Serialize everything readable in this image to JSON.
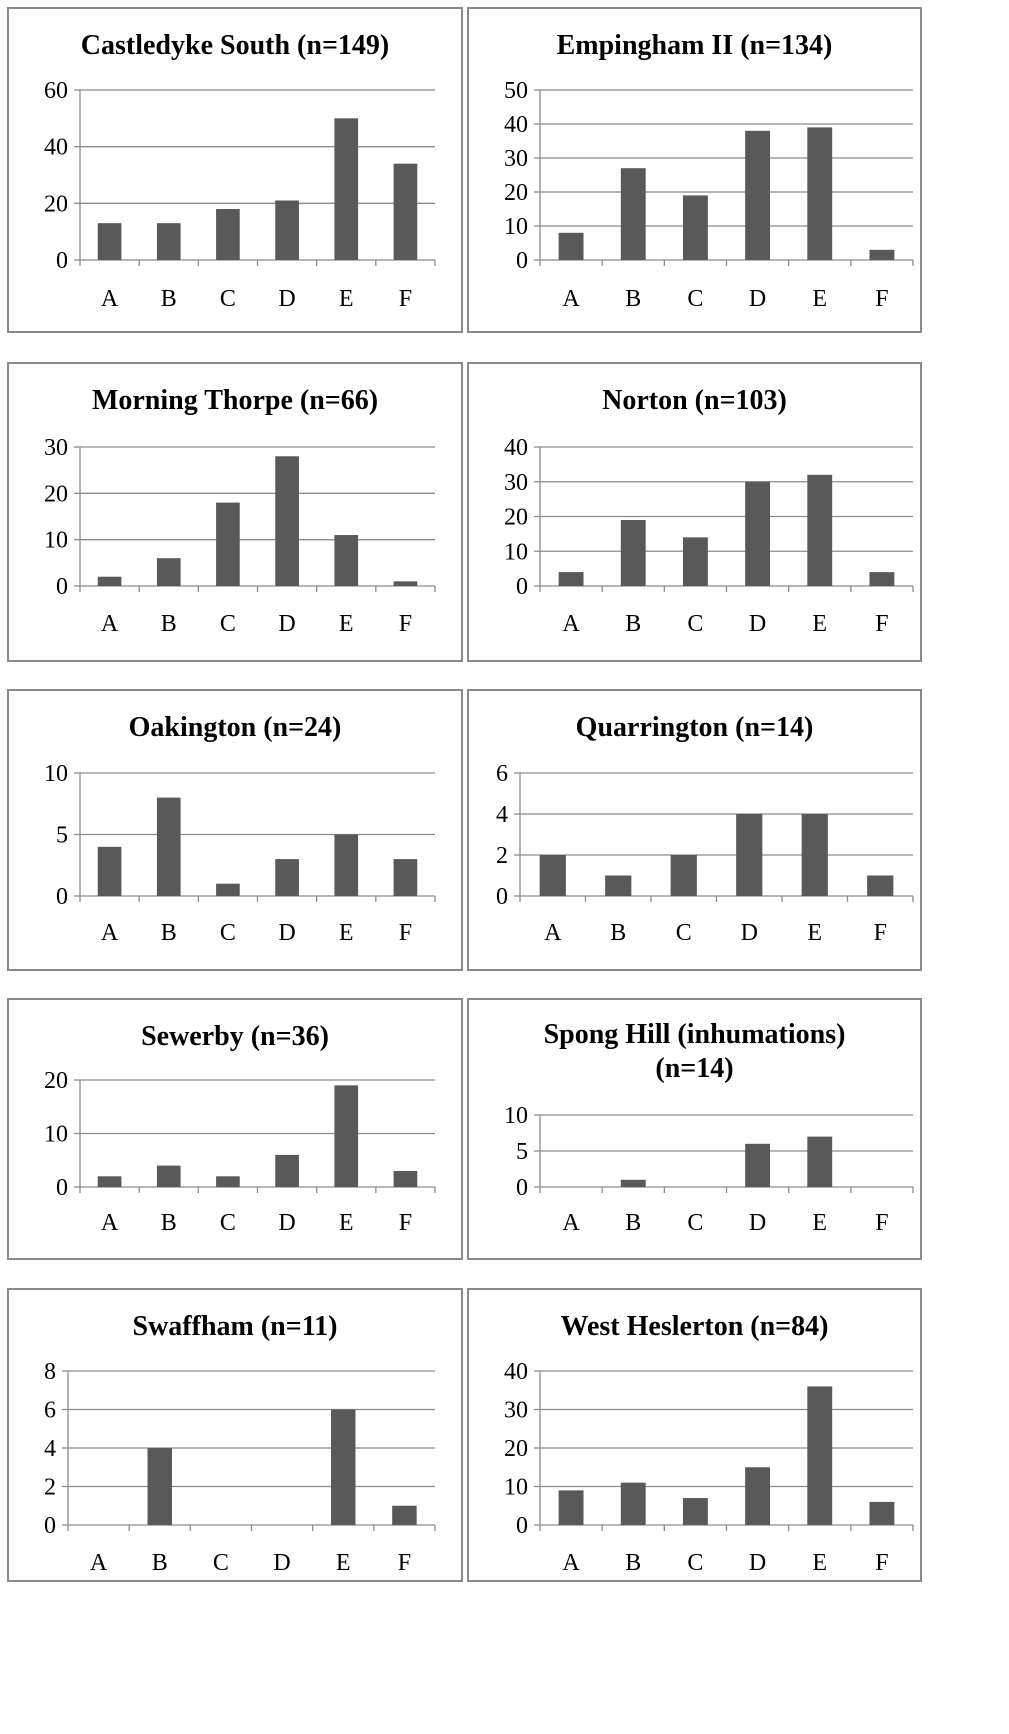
{
  "page": {
    "background": "#ffffff",
    "bar_color": "#595959",
    "grid_color": "#8c8c8c",
    "border_color": "#8a8a8a"
  },
  "chart_data": [
    {
      "type": "bar",
      "title": "Castledyke South (n=149)",
      "categories": [
        "A",
        "B",
        "C",
        "D",
        "E",
        "F"
      ],
      "values": [
        13,
        13,
        18,
        21,
        50,
        34
      ],
      "ylim": [
        0,
        60
      ],
      "yticks": [
        0,
        20,
        40,
        60
      ],
      "grid": true
    },
    {
      "type": "bar",
      "title": "Empingham II (n=134)",
      "categories": [
        "A",
        "B",
        "C",
        "D",
        "E",
        "F"
      ],
      "values": [
        8,
        27,
        19,
        38,
        39,
        3
      ],
      "ylim": [
        0,
        50
      ],
      "yticks": [
        0,
        10,
        20,
        30,
        40,
        50
      ],
      "grid": true
    },
    {
      "type": "bar",
      "title": "Morning Thorpe (n=66)",
      "categories": [
        "A",
        "B",
        "C",
        "D",
        "E",
        "F"
      ],
      "values": [
        2,
        6,
        18,
        28,
        11,
        1
      ],
      "ylim": [
        0,
        30
      ],
      "yticks": [
        0,
        10,
        20,
        30
      ],
      "grid": true
    },
    {
      "type": "bar",
      "title": "Norton (n=103)",
      "categories": [
        "A",
        "B",
        "C",
        "D",
        "E",
        "F"
      ],
      "values": [
        4,
        19,
        14,
        30,
        32,
        4
      ],
      "ylim": [
        0,
        40
      ],
      "yticks": [
        0,
        10,
        20,
        30,
        40
      ],
      "grid": true
    },
    {
      "type": "bar",
      "title": "Oakington (n=24)",
      "categories": [
        "A",
        "B",
        "C",
        "D",
        "E",
        "F"
      ],
      "values": [
        4,
        8,
        1,
        3,
        5,
        3
      ],
      "ylim": [
        0,
        10
      ],
      "yticks": [
        0,
        5,
        10
      ],
      "grid": true
    },
    {
      "type": "bar",
      "title": "Quarrington (n=14)",
      "categories": [
        "A",
        "B",
        "C",
        "D",
        "E",
        "F"
      ],
      "values": [
        2,
        1,
        2,
        4,
        4,
        1
      ],
      "ylim": [
        0,
        6
      ],
      "yticks": [
        0,
        2,
        4,
        6
      ],
      "grid": true
    },
    {
      "type": "bar",
      "title": "Sewerby (n=36)",
      "categories": [
        "A",
        "B",
        "C",
        "D",
        "E",
        "F"
      ],
      "values": [
        2,
        4,
        2,
        6,
        19,
        3
      ],
      "ylim": [
        0,
        20
      ],
      "yticks": [
        0,
        10,
        20
      ],
      "grid": true
    },
    {
      "type": "bar",
      "title": "Spong Hill (inhumations)\n(n=14)",
      "categories": [
        "A",
        "B",
        "C",
        "D",
        "E",
        "F"
      ],
      "values": [
        0,
        1,
        0,
        6,
        7,
        0
      ],
      "ylim": [
        0,
        10
      ],
      "yticks": [
        0,
        5,
        10
      ],
      "grid": true
    },
    {
      "type": "bar",
      "title": "Swaffham (n=11)",
      "categories": [
        "A",
        "B",
        "C",
        "D",
        "E",
        "F"
      ],
      "values": [
        0,
        4,
        0,
        0,
        6,
        1
      ],
      "ylim": [
        0,
        8
      ],
      "yticks": [
        0,
        2,
        4,
        6,
        8
      ],
      "grid": true
    },
    {
      "type": "bar",
      "title": "West Heslerton (n=84)",
      "categories": [
        "A",
        "B",
        "C",
        "D",
        "E",
        "F"
      ],
      "values": [
        9,
        11,
        7,
        15,
        36,
        6
      ],
      "ylim": [
        0,
        40
      ],
      "yticks": [
        0,
        10,
        20,
        30,
        40
      ],
      "grid": true
    }
  ]
}
